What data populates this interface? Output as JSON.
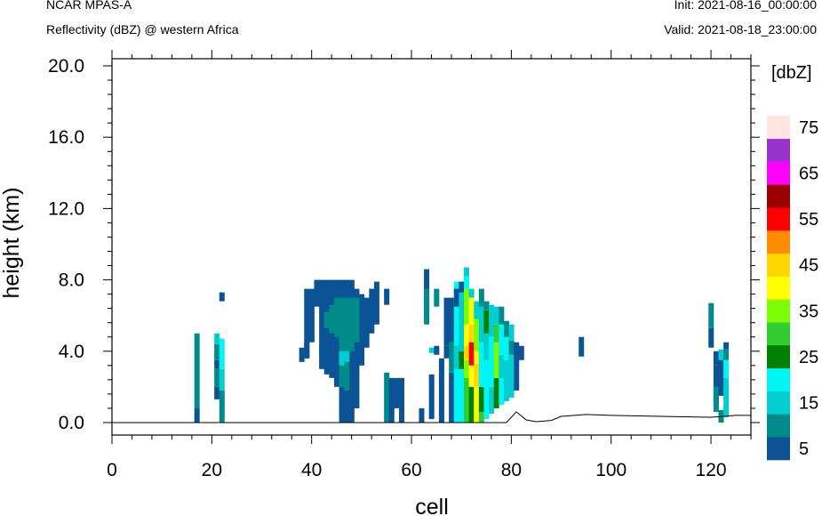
{
  "header": {
    "title_left": "NCAR MPAS-A",
    "subtitle_left": "Reflectivity (dBZ) @ western Africa",
    "init": "Init: 2021-08-16_00:00:00",
    "valid": "Valid: 2021-08-18_23:00:00"
  },
  "chart_data": {
    "type": "heatmap",
    "xlabel": "cell",
    "ylabel": "height (km)",
    "xlim": [
      0,
      128
    ],
    "ylim": [
      -0.7,
      20.4
    ],
    "x_ticks": [
      "0",
      "20",
      "40",
      "60",
      "80",
      "100",
      "120"
    ],
    "x_tick_values": [
      0,
      20,
      40,
      60,
      80,
      100,
      120
    ],
    "y_ticks": [
      "0.0",
      "4.0",
      "8.0",
      "12.0",
      "16.0",
      "20.0"
    ],
    "y_tick_values": [
      0,
      4,
      8,
      12,
      16,
      20
    ],
    "grid": false,
    "colorbar": {
      "unit_label": "[dbZ]",
      "labels": [
        "5",
        "15",
        "25",
        "35",
        "45",
        "55",
        "65",
        "75"
      ],
      "label_values": [
        5,
        15,
        25,
        35,
        45,
        55,
        65,
        75
      ],
      "levels": [
        5,
        10,
        15,
        20,
        25,
        30,
        35,
        40,
        45,
        50,
        55,
        60,
        65,
        70,
        75
      ],
      "colors": [
        "#0b5394",
        "#008b8b",
        "#00ced1",
        "#00f5f5",
        "#008000",
        "#32cd32",
        "#7cfc00",
        "#ffff00",
        "#ffd700",
        "#ff8c00",
        "#ff0000",
        "#990000",
        "#ff00ff",
        "#9932cc",
        "#ffe4e1"
      ]
    },
    "cell_width": 1,
    "cells": [
      [
        17,
        0,
        0.8,
        1
      ],
      [
        17,
        0.8,
        5.0,
        2
      ],
      [
        21,
        1.3,
        2.0,
        1
      ],
      [
        21,
        2.0,
        3.0,
        2
      ],
      [
        21,
        3.0,
        3.5,
        1
      ],
      [
        21,
        3.5,
        4.4,
        2
      ],
      [
        21,
        4.4,
        5.0,
        3
      ],
      [
        22,
        0,
        1.8,
        2
      ],
      [
        22,
        1.8,
        3.0,
        3
      ],
      [
        22,
        3.0,
        4.7,
        4
      ],
      [
        22,
        6.8,
        7.3,
        1
      ],
      [
        39,
        3.6,
        7.5,
        1
      ],
      [
        39,
        3.6,
        4.5,
        1
      ],
      [
        38,
        3.4,
        4.2,
        1
      ],
      [
        40,
        4.5,
        7.5,
        1
      ],
      [
        42,
        3.8,
        4.2,
        4
      ],
      [
        43,
        3.8,
        4.2,
        3
      ],
      [
        41,
        6.5,
        8.0,
        1
      ],
      [
        42,
        3.0,
        8.0,
        1
      ],
      [
        43,
        2.7,
        8.0,
        1
      ],
      [
        44,
        2.5,
        8.0,
        1
      ],
      [
        45,
        2.0,
        8.0,
        1
      ],
      [
        46,
        0,
        8.0,
        1
      ],
      [
        47,
        0,
        8.0,
        1
      ],
      [
        48,
        0,
        8.0,
        1
      ],
      [
        49,
        0.8,
        7.5,
        1
      ],
      [
        50,
        3.2,
        7.2,
        1
      ],
      [
        51,
        4.2,
        7.0,
        1
      ],
      [
        52,
        5.0,
        7.5,
        1
      ],
      [
        53,
        5.5,
        7.9,
        1
      ],
      [
        43,
        5.3,
        6.2,
        2
      ],
      [
        44,
        5.0,
        6.6,
        2
      ],
      [
        45,
        4.8,
        7.0,
        2
      ],
      [
        46,
        2.0,
        7.0,
        2
      ],
      [
        47,
        1.8,
        7.0,
        2
      ],
      [
        48,
        4.0,
        7.0,
        2
      ],
      [
        49,
        4.5,
        7.0,
        2
      ],
      [
        46,
        3.2,
        4.0,
        3
      ],
      [
        47,
        3.4,
        4.0,
        3
      ],
      [
        55,
        6.6,
        7.5,
        1
      ],
      [
        55,
        0,
        2.8,
        2
      ],
      [
        56,
        0,
        2.5,
        1
      ],
      [
        57,
        0.8,
        2.5,
        1
      ],
      [
        58,
        0,
        2.5,
        1
      ],
      [
        62,
        0,
        0.8,
        1
      ],
      [
        63,
        6.0,
        8.6,
        1
      ],
      [
        63,
        5.5,
        7.5,
        2
      ],
      [
        64,
        0.2,
        2.7,
        1
      ],
      [
        64,
        3.9,
        4.2,
        3
      ],
      [
        65,
        3.8,
        4.3,
        1
      ],
      [
        65,
        6.5,
        7.5,
        2
      ],
      [
        66,
        0,
        3.6,
        1
      ],
      [
        67,
        3.6,
        4.3,
        1
      ],
      [
        67,
        4.3,
        7.0,
        1
      ],
      [
        68,
        0,
        2.8,
        1
      ],
      [
        68,
        2.8,
        4.5,
        2
      ],
      [
        68,
        4.5,
        7.0,
        1
      ],
      [
        69,
        0,
        7.9,
        4
      ],
      [
        69,
        3.0,
        4.3,
        3
      ],
      [
        69,
        6.5,
        7.5,
        1
      ],
      [
        70,
        0,
        3.0,
        4
      ],
      [
        70,
        3.0,
        4.0,
        5
      ],
      [
        70,
        4.0,
        7.3,
        3
      ],
      [
        70,
        7.3,
        7.9,
        1
      ],
      [
        71,
        0,
        2.5,
        6
      ],
      [
        71,
        2.5,
        3.5,
        7
      ],
      [
        71,
        3.5,
        4.3,
        9
      ],
      [
        71,
        4.3,
        5.5,
        8
      ],
      [
        71,
        5.5,
        7.5,
        7
      ],
      [
        71,
        7.5,
        8.2,
        4
      ],
      [
        71,
        8.2,
        8.7,
        3
      ],
      [
        72,
        0,
        2.0,
        5
      ],
      [
        72,
        2.0,
        3.2,
        8
      ],
      [
        72,
        3.2,
        4.5,
        11
      ],
      [
        72,
        4.5,
        5.5,
        9
      ],
      [
        72,
        5.5,
        7.0,
        8
      ],
      [
        72,
        7.0,
        7.5,
        3
      ],
      [
        73,
        0,
        2.0,
        8
      ],
      [
        73,
        2.0,
        3.3,
        9
      ],
      [
        73,
        3.3,
        4.0,
        8
      ],
      [
        73,
        4.0,
        5.8,
        7
      ],
      [
        73,
        5.8,
        6.8,
        3
      ],
      [
        74,
        0,
        0.6,
        6
      ],
      [
        74,
        0.6,
        2.0,
        5
      ],
      [
        74,
        2.0,
        4.5,
        4
      ],
      [
        74,
        4.5,
        6.5,
        3
      ],
      [
        74,
        6.5,
        7.5,
        2
      ],
      [
        75,
        0.2,
        3.5,
        4
      ],
      [
        75,
        3.5,
        5.0,
        3
      ],
      [
        75,
        5.0,
        6.3,
        5
      ],
      [
        75,
        6.3,
        6.8,
        2
      ],
      [
        76,
        0.5,
        2.0,
        3
      ],
      [
        76,
        2.0,
        4.8,
        4
      ],
      [
        76,
        4.8,
        6.6,
        3
      ],
      [
        77,
        0.8,
        2.5,
        5
      ],
      [
        77,
        2.5,
        4.5,
        7
      ],
      [
        77,
        4.5,
        5.5,
        6
      ],
      [
        77,
        5.5,
        6.5,
        3
      ],
      [
        78,
        1.0,
        2.5,
        4
      ],
      [
        78,
        2.5,
        3.8,
        3
      ],
      [
        78,
        3.8,
        5.5,
        4
      ],
      [
        78,
        5.5,
        6.5,
        2
      ],
      [
        79,
        1.2,
        3.5,
        3
      ],
      [
        79,
        3.5,
        4.8,
        4
      ],
      [
        79,
        4.8,
        5.7,
        2
      ],
      [
        80,
        1.4,
        3.8,
        3
      ],
      [
        80,
        3.8,
        4.6,
        2
      ],
      [
        80,
        4.6,
        5.5,
        3
      ],
      [
        81,
        1.8,
        4.5,
        1
      ],
      [
        82,
        3.5,
        4.3,
        1
      ],
      [
        94,
        3.7,
        4.8,
        1
      ],
      [
        120,
        4.2,
        5.3,
        1
      ],
      [
        120,
        5.3,
        6.7,
        2
      ],
      [
        121,
        1.0,
        3.2,
        1
      ],
      [
        121,
        0.6,
        2.0,
        2
      ],
      [
        121,
        3.2,
        4.0,
        1
      ],
      [
        122,
        0,
        0.7,
        2
      ],
      [
        122,
        1.5,
        4.0,
        1
      ],
      [
        122,
        3.5,
        4.1,
        3
      ],
      [
        123,
        0.3,
        2.5,
        3
      ],
      [
        123,
        2.5,
        3.5,
        4
      ],
      [
        123,
        3.5,
        4.1,
        2
      ],
      [
        123,
        4.1,
        4.5,
        1
      ]
    ],
    "terrain_profile": [
      [
        0,
        0
      ],
      [
        79,
        0
      ],
      [
        81,
        0.6
      ],
      [
        83,
        0.15
      ],
      [
        85,
        0.05
      ],
      [
        88,
        0.12
      ],
      [
        90,
        0.35
      ],
      [
        95,
        0.45
      ],
      [
        100,
        0.4
      ],
      [
        110,
        0.35
      ],
      [
        120,
        0.3
      ],
      [
        125,
        0.4
      ],
      [
        128,
        0.4
      ]
    ]
  }
}
